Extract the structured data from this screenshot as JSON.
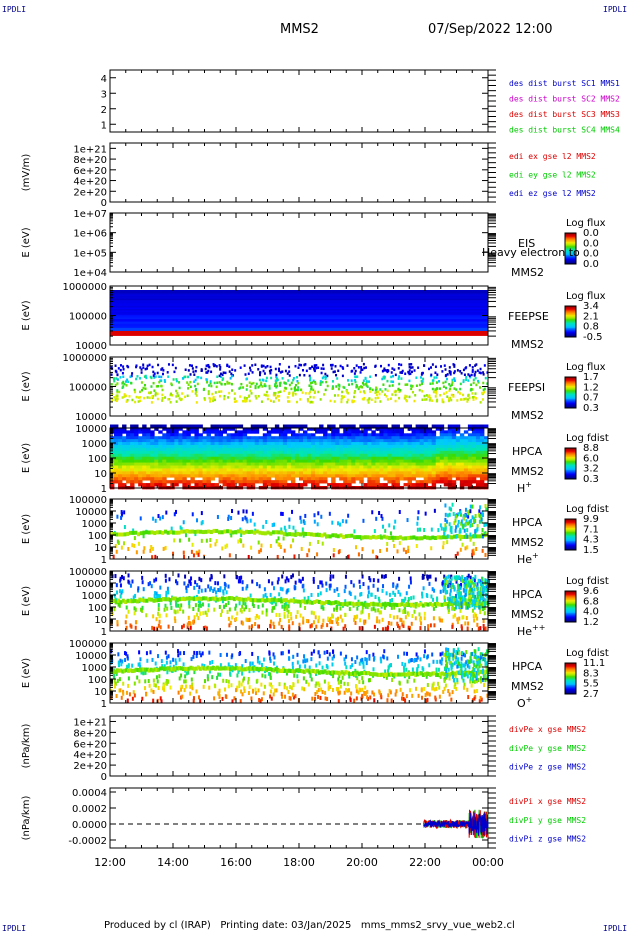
{
  "corner_labels": {
    "top_left": "IPDLI",
    "top_right": "IPDLI",
    "bottom_left": "IPDLI",
    "bottom_right": "IPDLI"
  },
  "header": {
    "spacecraft": "MMS2",
    "datetime": "07/Sep/2022 12:00"
  },
  "footer": {
    "text": "Produced by cl (IRAP)   Printing date: 03/Jan/2025   mms_mms2_srvy_vue_web2.cl"
  },
  "colors": {
    "blue": "#0000cc",
    "magenta": "#cc00cc",
    "red": "#dd0000",
    "green": "#00cc00"
  },
  "chart_data": [
    {
      "type": "line",
      "panel": "des-dist-burst",
      "ylabel": "",
      "ylim": [
        0.5,
        4.5
      ],
      "yticks": [
        "4",
        "3",
        "2",
        "1"
      ],
      "series": [
        {
          "name": "des dist burst SC1 MMS1",
          "color": "#0000cc",
          "values": []
        },
        {
          "name": "des dist burst SC2 MMS2",
          "color": "#cc00cc",
          "values": []
        },
        {
          "name": "des dist burst SC3 MMS3",
          "color": "#dd0000",
          "values": []
        },
        {
          "name": "des dist burst SC4 MMS4",
          "color": "#00cc00",
          "values": []
        }
      ]
    },
    {
      "type": "line",
      "panel": "edi-e",
      "ylabel": "(mV/m)",
      "ylim": [
        0,
        1.1e+21
      ],
      "yticks": [
        "1e+21",
        "8e+20",
        "6e+20",
        "4e+20",
        "2e+20",
        "0"
      ],
      "series": [
        {
          "name": "edi ex gse l2 MMS2",
          "color": "#dd0000",
          "values": []
        },
        {
          "name": "edi ey gse l2 MMS2",
          "color": "#00cc00",
          "values": []
        },
        {
          "name": "edi ez gse l2 MMS2",
          "color": "#0000cc",
          "values": []
        }
      ]
    },
    {
      "type": "heatmap",
      "panel": "eis",
      "ylabel": "E (eV)",
      "scale": "log",
      "ylim": [
        10000.0,
        10000000.0
      ],
      "yticks": [
        "1e+07",
        "1e+06",
        "1e+05",
        "1e+04"
      ],
      "instrument": "EIS",
      "overlay_text": "Heavy electron to",
      "spacecraft": "MMS2",
      "colorbar_title": "Log flux",
      "colorbar_ticks": [
        "0.0",
        "0.0",
        "0.0",
        "0.0"
      ]
    },
    {
      "type": "heatmap",
      "panel": "feepse",
      "ylabel": "E (eV)",
      "scale": "log",
      "ylim": [
        10000,
        1000000
      ],
      "yticks": [
        "1000000",
        "100000",
        "10000"
      ],
      "instrument": "FEEPSE",
      "spacecraft": "MMS2",
      "colorbar_title": "Log flux",
      "colorbar_ticks": [
        "3.4",
        "2.1",
        "0.8",
        "-0.5"
      ]
    },
    {
      "type": "heatmap",
      "panel": "feepsi",
      "ylabel": "E (eV)",
      "scale": "log",
      "ylim": [
        10000,
        1000000
      ],
      "yticks": [
        "1000000",
        "100000",
        "10000"
      ],
      "instrument": "FEEPSI",
      "spacecraft": "MMS2",
      "colorbar_title": "Log flux",
      "colorbar_ticks": [
        "1.7",
        "1.2",
        "0.7",
        "0.3"
      ]
    },
    {
      "type": "heatmap",
      "panel": "hpca-h",
      "ylabel": "E (eV)",
      "scale": "log",
      "ylim": [
        1,
        10000
      ],
      "yticks": [
        "10000",
        "1000",
        "100",
        "10",
        "1"
      ],
      "instrument": "HPCA",
      "spacecraft": "MMS2",
      "species": "H",
      "species_sup": "+",
      "colorbar_title": "Log fdist",
      "colorbar_ticks": [
        "8.8",
        "6.0",
        "3.2",
        "0.3"
      ]
    },
    {
      "type": "heatmap",
      "panel": "hpca-he1",
      "ylabel": "E (eV)",
      "scale": "log",
      "ylim": [
        1,
        100000
      ],
      "yticks": [
        "100000",
        "10000",
        "1000",
        "100",
        "10",
        "1"
      ],
      "instrument": "HPCA",
      "spacecraft": "MMS2",
      "species": "He",
      "species_sup": "+",
      "colorbar_title": "Log fdist",
      "colorbar_ticks": [
        "9.9",
        "7.1",
        "4.3",
        "1.5"
      ]
    },
    {
      "type": "heatmap",
      "panel": "hpca-he2",
      "ylabel": "E (eV)",
      "scale": "log",
      "ylim": [
        1,
        100000
      ],
      "yticks": [
        "100000",
        "10000",
        "1000",
        "100",
        "10",
        "1"
      ],
      "instrument": "HPCA",
      "spacecraft": "MMS2",
      "species": "He",
      "species_sup": "++",
      "colorbar_title": "Log fdist",
      "colorbar_ticks": [
        "9.6",
        "6.8",
        "4.0",
        "1.2"
      ]
    },
    {
      "type": "heatmap",
      "panel": "hpca-o",
      "ylabel": "E (eV)",
      "scale": "log",
      "ylim": [
        1,
        100000
      ],
      "yticks": [
        "100000",
        "10000",
        "1000",
        "100",
        "10",
        "1"
      ],
      "instrument": "HPCA",
      "spacecraft": "MMS2",
      "species": "O",
      "species_sup": "+",
      "colorbar_title": "Log fdist",
      "colorbar_ticks": [
        "11.1",
        "8.3",
        "5.5",
        "2.7"
      ]
    },
    {
      "type": "line",
      "panel": "divpe",
      "ylabel": "(nPa/km)",
      "ylim": [
        0,
        1.1e+21
      ],
      "yticks": [
        "1e+21",
        "8e+20",
        "6e+20",
        "4e+20",
        "2e+20",
        "0"
      ],
      "series": [
        {
          "name": "divPe x gse MMS2",
          "color": "#dd0000",
          "values": []
        },
        {
          "name": "divPe y gse MMS2",
          "color": "#00cc00",
          "values": []
        },
        {
          "name": "divPe z gse MMS2",
          "color": "#0000cc",
          "values": []
        }
      ]
    },
    {
      "type": "line",
      "panel": "divpi",
      "ylabel": "(nPa/km)",
      "ylim": [
        -0.0003,
        0.00045
      ],
      "yticks": [
        "0.0004",
        "0.0002",
        "0.0000",
        "-0.0002"
      ],
      "series": [
        {
          "name": "divPi x gse MMS2",
          "color": "#dd0000",
          "values": []
        },
        {
          "name": "divPi y gse MMS2",
          "color": "#00cc00",
          "values": []
        },
        {
          "name": "divPi z gse MMS2",
          "color": "#0000cc",
          "values": []
        }
      ]
    }
  ],
  "time_axis": {
    "ticks": [
      "12:00",
      "14:00",
      "16:00",
      "18:00",
      "20:00",
      "22:00",
      "00:00"
    ]
  }
}
